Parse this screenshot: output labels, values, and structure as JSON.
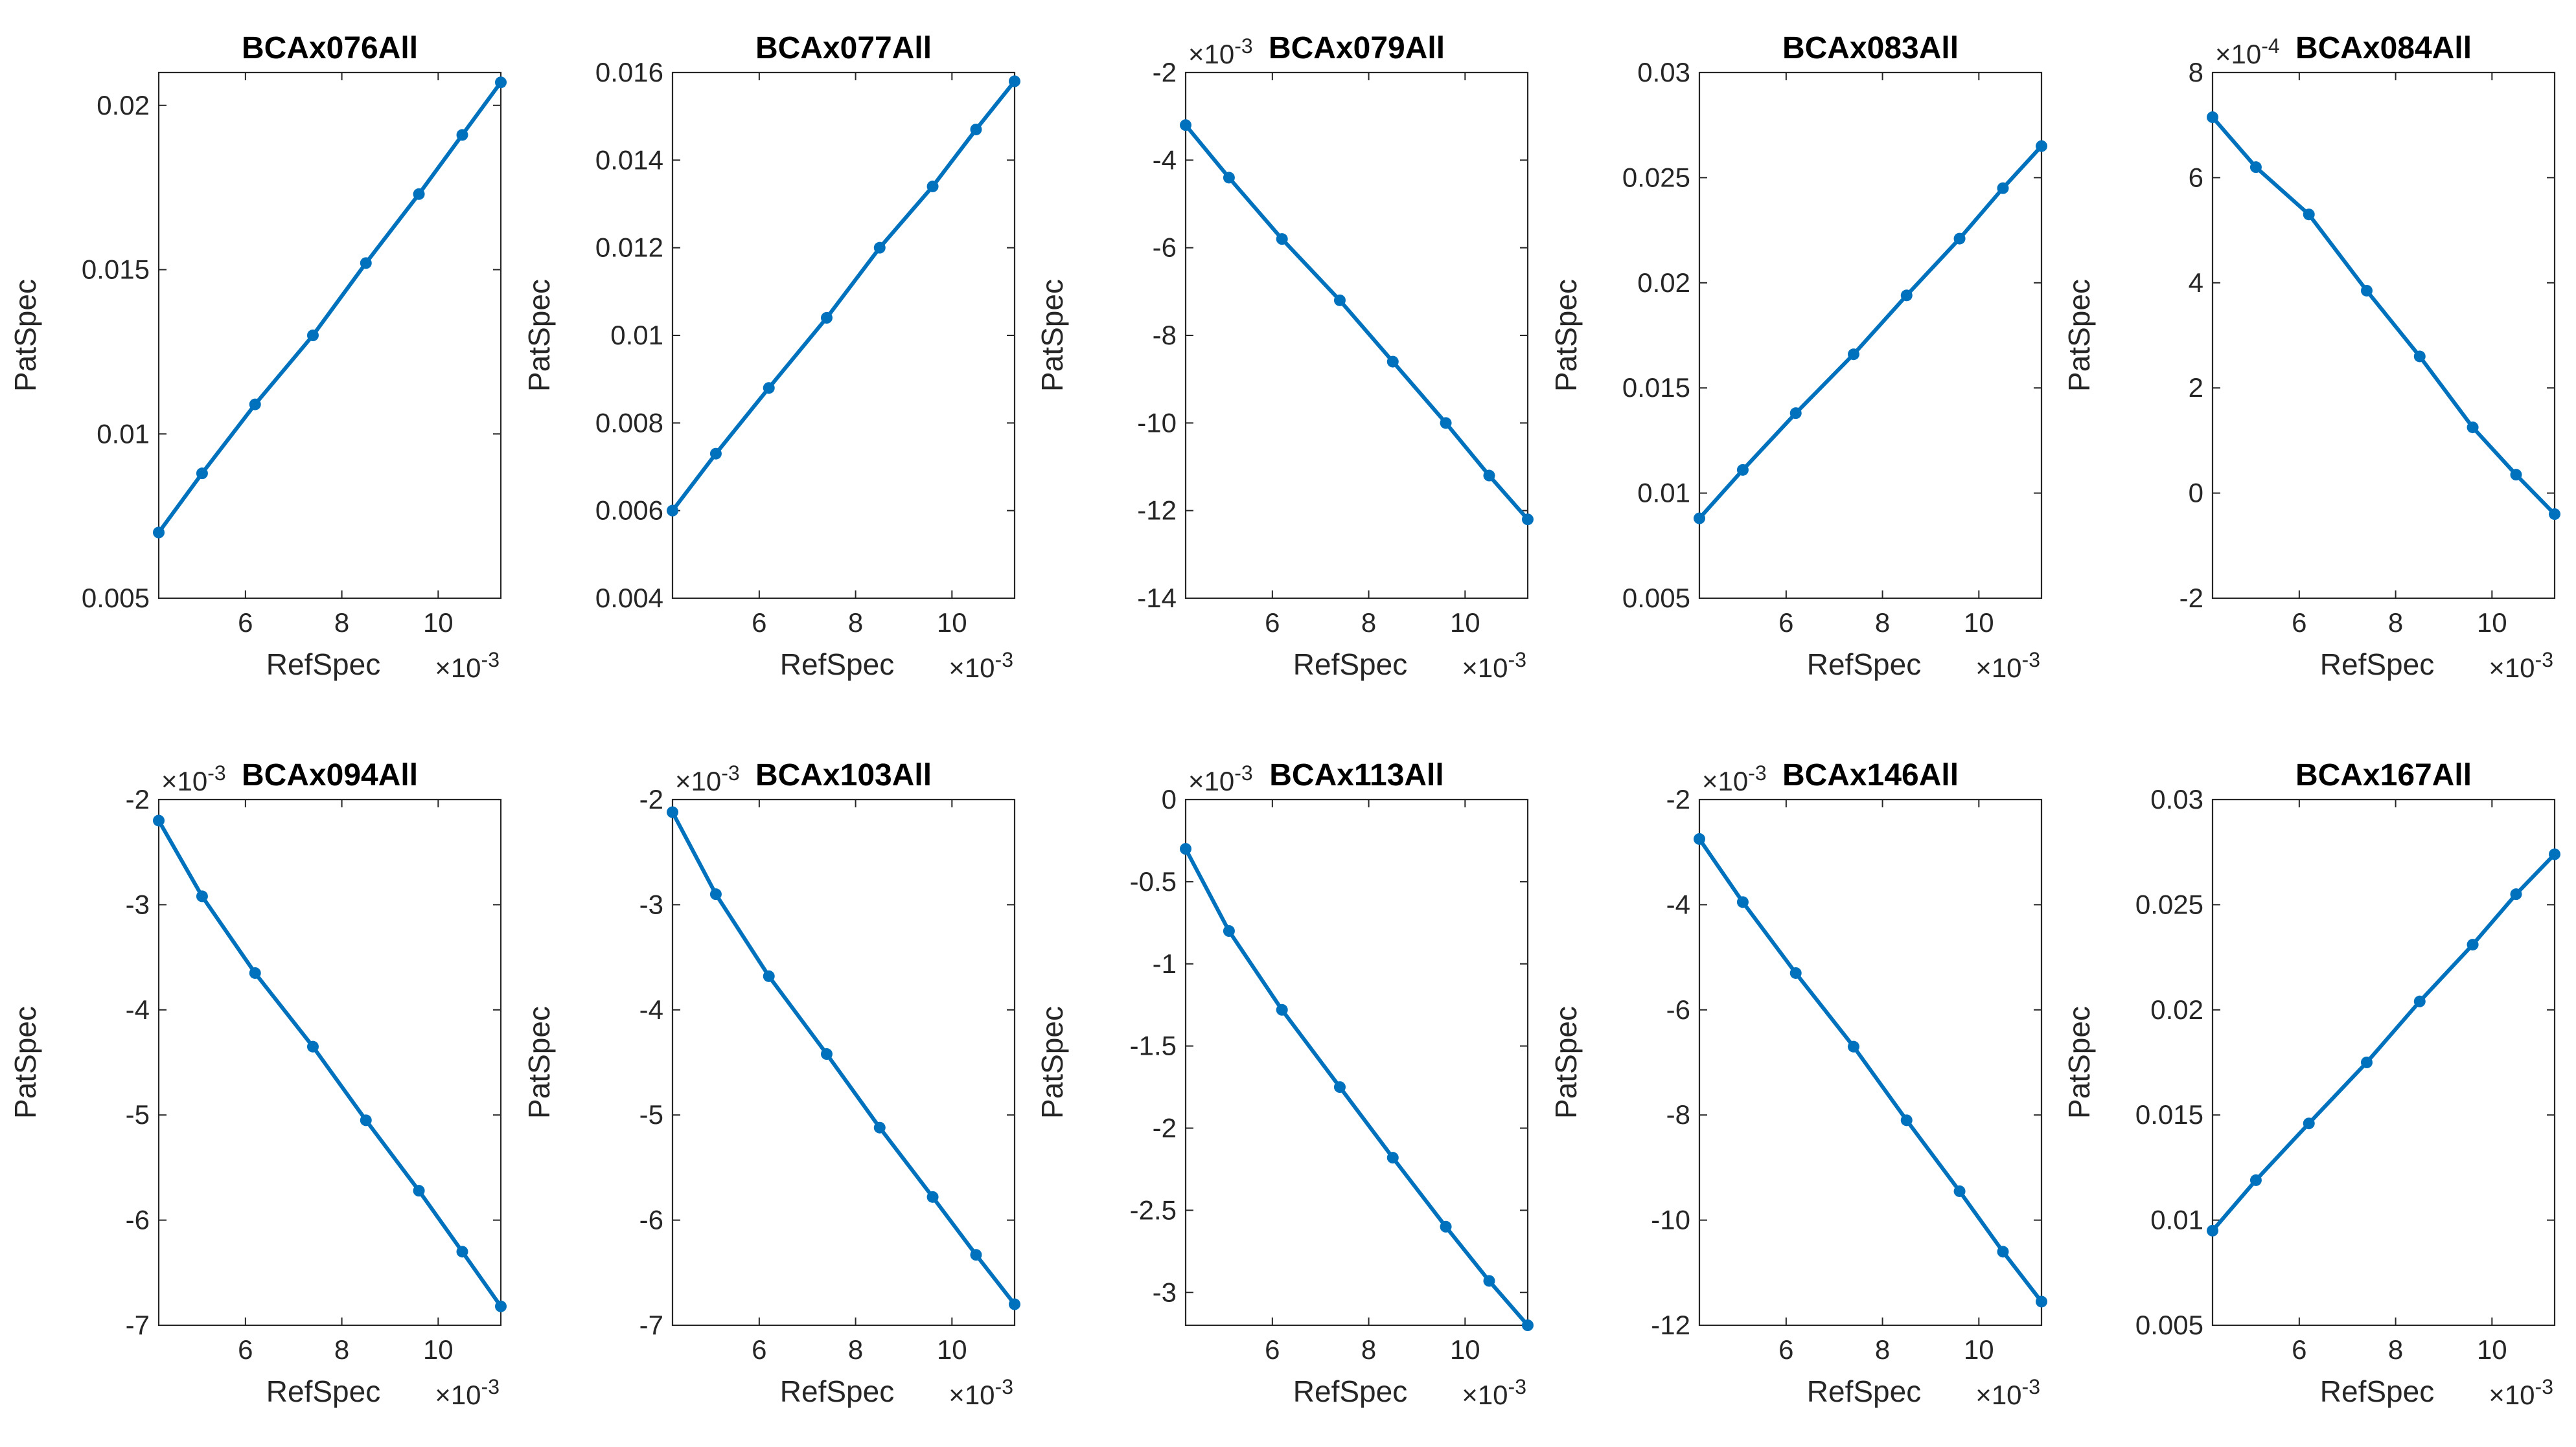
{
  "figure": {
    "colors": {
      "series": "#0072BD",
      "axis": "#262626"
    }
  },
  "chart_data": [
    {
      "type": "line",
      "title": "BCAx076All",
      "xlabel": "RefSpec",
      "ylabel": "PatSpec",
      "x_exponent": "-3",
      "y_exponent": "",
      "xlim": [
        4.2,
        11.3
      ],
      "ylim": [
        0.005,
        0.021
      ],
      "xticks": [
        6,
        8,
        10
      ],
      "xtick_labels": [
        "6",
        "8",
        "10"
      ],
      "yticks": [
        0.005,
        0.01,
        0.015,
        0.02
      ],
      "ytick_labels": [
        "0.005",
        "0.01",
        "0.015",
        "0.02"
      ],
      "x": [
        4.2,
        5.1,
        6.2,
        7.4,
        8.5,
        9.6,
        10.5,
        11.3
      ],
      "y": [
        0.007,
        0.0088,
        0.0109,
        0.013,
        0.0152,
        0.0173,
        0.0191,
        0.0207
      ]
    },
    {
      "type": "line",
      "title": "BCAx077All",
      "xlabel": "RefSpec",
      "ylabel": "PatSpec",
      "x_exponent": "-3",
      "y_exponent": "",
      "xlim": [
        4.2,
        11.3
      ],
      "ylim": [
        0.004,
        0.016
      ],
      "xticks": [
        6,
        8,
        10
      ],
      "xtick_labels": [
        "6",
        "8",
        "10"
      ],
      "yticks": [
        0.004,
        0.006,
        0.008,
        0.01,
        0.012,
        0.014,
        0.016
      ],
      "ytick_labels": [
        "0.004",
        "0.006",
        "0.008",
        "0.01",
        "0.012",
        "0.014",
        "0.016"
      ],
      "x": [
        4.2,
        5.1,
        6.2,
        7.4,
        8.5,
        9.6,
        10.5,
        11.3
      ],
      "y": [
        0.006,
        0.0073,
        0.0088,
        0.0104,
        0.012,
        0.0134,
        0.0147,
        0.0158
      ]
    },
    {
      "type": "line",
      "title": "BCAx079All",
      "xlabel": "RefSpec",
      "ylabel": "PatSpec",
      "x_exponent": "-3",
      "y_exponent": "-3",
      "xlim": [
        4.2,
        11.3
      ],
      "ylim": [
        -14,
        -2
      ],
      "xticks": [
        6,
        8,
        10
      ],
      "xtick_labels": [
        "6",
        "8",
        "10"
      ],
      "yticks": [
        -14,
        -12,
        -10,
        -8,
        -6,
        -4,
        -2
      ],
      "ytick_labels": [
        "-14",
        "-12",
        "-10",
        "-8",
        "-6",
        "-4",
        "-2"
      ],
      "x": [
        4.2,
        5.1,
        6.2,
        7.4,
        8.5,
        9.6,
        10.5,
        11.3
      ],
      "y": [
        -3.2,
        -4.4,
        -5.8,
        -7.2,
        -8.6,
        -10.0,
        -11.2,
        -12.2
      ]
    },
    {
      "type": "line",
      "title": "BCAx083All",
      "xlabel": "RefSpec",
      "ylabel": "PatSpec",
      "x_exponent": "-3",
      "y_exponent": "",
      "xlim": [
        4.2,
        11.3
      ],
      "ylim": [
        0.005,
        0.03
      ],
      "xticks": [
        6,
        8,
        10
      ],
      "xtick_labels": [
        "6",
        "8",
        "10"
      ],
      "yticks": [
        0.005,
        0.01,
        0.015,
        0.02,
        0.025,
        0.03
      ],
      "ytick_labels": [
        "0.005",
        "0.01",
        "0.015",
        "0.02",
        "0.025",
        "0.03"
      ],
      "x": [
        4.2,
        5.1,
        6.2,
        7.4,
        8.5,
        9.6,
        10.5,
        11.3
      ],
      "y": [
        0.0088,
        0.0111,
        0.0138,
        0.0166,
        0.0194,
        0.0221,
        0.0245,
        0.0265
      ]
    },
    {
      "type": "line",
      "title": "BCAx084All",
      "xlabel": "RefSpec",
      "ylabel": "PatSpec",
      "x_exponent": "-3",
      "y_exponent": "-4",
      "xlim": [
        4.2,
        11.3
      ],
      "ylim": [
        -2,
        8
      ],
      "xticks": [
        6,
        8,
        10
      ],
      "xtick_labels": [
        "6",
        "8",
        "10"
      ],
      "yticks": [
        -2,
        0,
        2,
        4,
        6,
        8
      ],
      "ytick_labels": [
        "-2",
        "0",
        "2",
        "4",
        "6",
        "8"
      ],
      "x": [
        4.2,
        5.1,
        6.2,
        7.4,
        8.5,
        9.6,
        10.5,
        11.3
      ],
      "y": [
        7.15,
        6.2,
        5.3,
        3.85,
        2.6,
        1.25,
        0.35,
        -0.4
      ]
    },
    {
      "type": "line",
      "title": "BCAx094All",
      "xlabel": "RefSpec",
      "ylabel": "PatSpec",
      "x_exponent": "-3",
      "y_exponent": "-3",
      "xlim": [
        4.2,
        11.3
      ],
      "ylim": [
        -7,
        -2
      ],
      "xticks": [
        6,
        8,
        10
      ],
      "xtick_labels": [
        "6",
        "8",
        "10"
      ],
      "yticks": [
        -7,
        -6,
        -5,
        -4,
        -3,
        -2
      ],
      "ytick_labels": [
        "-7",
        "-6",
        "-5",
        "-4",
        "-3",
        "-2"
      ],
      "x": [
        4.2,
        5.1,
        6.2,
        7.4,
        8.5,
        9.6,
        10.5,
        11.3
      ],
      "y": [
        -2.2,
        -2.92,
        -3.65,
        -4.35,
        -5.05,
        -5.72,
        -6.3,
        -6.82
      ]
    },
    {
      "type": "line",
      "title": "BCAx103All",
      "xlabel": "RefSpec",
      "ylabel": "PatSpec",
      "x_exponent": "-3",
      "y_exponent": "-3",
      "xlim": [
        4.2,
        11.3
      ],
      "ylim": [
        -7,
        -2
      ],
      "xticks": [
        6,
        8,
        10
      ],
      "xtick_labels": [
        "6",
        "8",
        "10"
      ],
      "yticks": [
        -7,
        -6,
        -5,
        -4,
        -3,
        -2
      ],
      "ytick_labels": [
        "-7",
        "-6",
        "-5",
        "-4",
        "-3",
        "-2"
      ],
      "x": [
        4.2,
        5.1,
        6.2,
        7.4,
        8.5,
        9.6,
        10.5,
        11.3
      ],
      "y": [
        -2.12,
        -2.9,
        -3.68,
        -4.42,
        -5.12,
        -5.78,
        -6.33,
        -6.8
      ]
    },
    {
      "type": "line",
      "title": "BCAx113All",
      "xlabel": "RefSpec",
      "ylabel": "PatSpec",
      "x_exponent": "-3",
      "y_exponent": "-3",
      "xlim": [
        4.2,
        11.3
      ],
      "ylim": [
        -3.2,
        0
      ],
      "xticks": [
        6,
        8,
        10
      ],
      "xtick_labels": [
        "6",
        "8",
        "10"
      ],
      "yticks": [
        -3,
        -2.5,
        -2,
        -1.5,
        -1,
        -0.5,
        0
      ],
      "ytick_labels": [
        "-3",
        "-2.5",
        "-2",
        "-1.5",
        "-1",
        "-0.5",
        "0"
      ],
      "x": [
        4.2,
        5.1,
        6.2,
        7.4,
        8.5,
        9.6,
        10.5,
        11.3
      ],
      "y": [
        -0.3,
        -0.8,
        -1.28,
        -1.75,
        -2.18,
        -2.6,
        -2.93,
        -3.2
      ]
    },
    {
      "type": "line",
      "title": "BCAx146All",
      "xlabel": "RefSpec",
      "ylabel": "PatSpec",
      "x_exponent": "-3",
      "y_exponent": "-3",
      "xlim": [
        4.2,
        11.3
      ],
      "ylim": [
        -12,
        -2
      ],
      "xticks": [
        6,
        8,
        10
      ],
      "xtick_labels": [
        "6",
        "8",
        "10"
      ],
      "yticks": [
        -12,
        -10,
        -8,
        -6,
        -4,
        -2
      ],
      "ytick_labels": [
        "-12",
        "-10",
        "-8",
        "-6",
        "-4",
        "-2"
      ],
      "x": [
        4.2,
        5.1,
        6.2,
        7.4,
        8.5,
        9.6,
        10.5,
        11.3
      ],
      "y": [
        -2.75,
        -3.95,
        -5.3,
        -6.7,
        -8.1,
        -9.45,
        -10.6,
        -11.55
      ]
    },
    {
      "type": "line",
      "title": "BCAx167All",
      "xlabel": "RefSpec",
      "ylabel": "PatSpec",
      "x_exponent": "-3",
      "y_exponent": "",
      "xlim": [
        4.2,
        11.3
      ],
      "ylim": [
        0.005,
        0.03
      ],
      "xticks": [
        6,
        8,
        10
      ],
      "xtick_labels": [
        "6",
        "8",
        "10"
      ],
      "yticks": [
        0.005,
        0.01,
        0.015,
        0.02,
        0.025,
        0.03
      ],
      "ytick_labels": [
        "0.005",
        "0.01",
        "0.015",
        "0.02",
        "0.025",
        "0.03"
      ],
      "x": [
        4.2,
        5.1,
        6.2,
        7.4,
        8.5,
        9.6,
        10.5,
        11.3
      ],
      "y": [
        0.0095,
        0.0119,
        0.0146,
        0.0175,
        0.0204,
        0.0231,
        0.0255,
        0.0274
      ]
    }
  ]
}
